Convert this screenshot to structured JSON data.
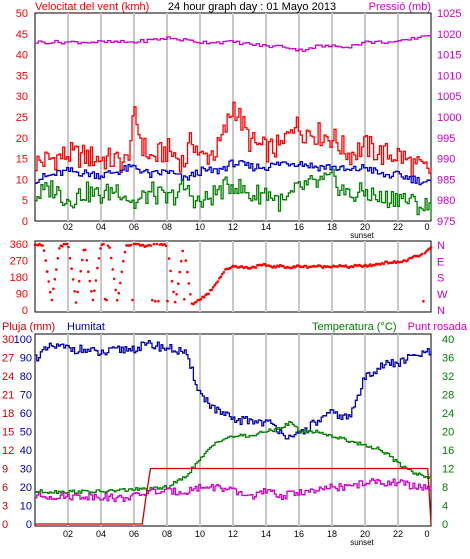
{
  "chart_data": [
    {
      "type": "line",
      "title": "24 hour graph day : 01 Mayo 2013",
      "left_axis_label": "Velocitat del vent (kmh)",
      "right_axis_label": "Pressió (mb)",
      "left_ticks": [
        "0",
        "5",
        "10",
        "15",
        "20",
        "25",
        "30",
        "35",
        "40",
        "45",
        "50"
      ],
      "right_ticks": [
        "975",
        "980",
        "985",
        "990",
        "995",
        "1000",
        "1005",
        "1010",
        "1015",
        "1020",
        "1025"
      ],
      "left_range": [
        0,
        50
      ],
      "right_range": [
        975,
        1025
      ],
      "x_ticks": [
        "02",
        "04",
        "06",
        "08",
        "10",
        "12",
        "14",
        "16",
        "18",
        "20",
        "22",
        "0"
      ],
      "x_marker": "sunset",
      "grid": true,
      "colors": {
        "gust": "#ff0000",
        "average": "#0000cc",
        "minimum": "#008000",
        "pressure": "#cc00cc"
      },
      "series": [
        {
          "key": "gust",
          "hours": [
            0,
            2,
            4,
            5.5,
            6,
            6.5,
            7,
            8,
            9,
            9.5,
            10,
            11,
            11.5,
            12,
            13,
            14,
            15,
            15.5,
            16,
            17,
            18,
            19,
            20,
            21,
            22,
            23,
            24
          ],
          "values": [
            14,
            16,
            15,
            14,
            25,
            18,
            15,
            17,
            14,
            20,
            15,
            17,
            22,
            28,
            19,
            17,
            18,
            24,
            22,
            21,
            20,
            16,
            18,
            16,
            16,
            13,
            12
          ]
        },
        {
          "key": "average",
          "hours": [
            0,
            2,
            4,
            6,
            7,
            8,
            9,
            10,
            11,
            12,
            13,
            14,
            15,
            16,
            17,
            18,
            19,
            20,
            21,
            22,
            23,
            24
          ],
          "values": [
            10,
            12,
            11,
            13,
            11,
            12,
            10,
            12,
            12,
            14,
            13,
            13,
            14,
            14,
            13,
            13,
            12,
            13,
            11,
            11,
            10,
            9
          ]
        },
        {
          "key": "minimum",
          "hours": [
            0,
            1,
            2,
            3,
            4,
            5,
            6,
            7,
            8,
            9,
            10,
            11,
            12,
            13,
            14,
            15,
            16,
            17,
            18,
            19,
            20,
            21,
            22,
            23,
            24
          ],
          "values": [
            6,
            8,
            5,
            7,
            6,
            8,
            4,
            7,
            5,
            8,
            4,
            7,
            9,
            6,
            7,
            4,
            8,
            9,
            10,
            6,
            7,
            5,
            6,
            4,
            3
          ]
        },
        {
          "key": "pressure",
          "hours": [
            0,
            2,
            4,
            6,
            8,
            10,
            12,
            14,
            15,
            16,
            17,
            18,
            19,
            20,
            21,
            22,
            23,
            24
          ],
          "values": [
            1018,
            1018,
            1018,
            1018,
            1019,
            1018,
            1018,
            1017,
            1017,
            1016,
            1017,
            1017,
            1017,
            1018,
            1018,
            1018,
            1019,
            1020
          ]
        }
      ]
    },
    {
      "type": "scatter",
      "title": "",
      "left_ticks": [
        "0",
        "90",
        "180",
        "270",
        "360"
      ],
      "right_ticks": [
        "N",
        "W",
        "S",
        "E",
        "N"
      ],
      "y_range": [
        0,
        360
      ],
      "color": "#ff0000",
      "series": [
        {
          "key": "direction",
          "hours": [
            0,
            0.5,
            1,
            1.5,
            2,
            2.5,
            3,
            3.5,
            4,
            4.5,
            5,
            5.5,
            6,
            6.5,
            7,
            7.5,
            8,
            8.5,
            9,
            9.5,
            10,
            10.5,
            11,
            11.5,
            12,
            12.5,
            13,
            13.5,
            14,
            14.5,
            15,
            15.5,
            16,
            16.5,
            17,
            17.5,
            18,
            18.5,
            19,
            19.5,
            20,
            20.5,
            21,
            21.5,
            22,
            22.5,
            23,
            23.5,
            24
          ],
          "values": [
            360,
            355,
            45,
            350,
            360,
            40,
            355,
            45,
            360,
            350,
            45,
            355,
            360,
            350,
            355,
            360,
            355,
            35,
            355,
            30,
            60,
            90,
            150,
            215,
            240,
            235,
            230,
            240,
            245,
            235,
            240,
            230,
            240,
            235,
            240,
            235,
            240,
            240,
            235,
            240,
            240,
            245,
            255,
            260,
            260,
            270,
            290,
            300,
            340
          ]
        }
      ]
    },
    {
      "type": "line",
      "labels": {
        "rain": "Pluja (mm)",
        "humidity": "Humitat",
        "temperature": "Temperatura (°C)",
        "dewpoint": "Punt rosada"
      },
      "left_ticks": [
        "0",
        "10",
        "20",
        "30",
        "40",
        "50",
        "60",
        "70",
        "80",
        "90",
        "100"
      ],
      "left_ticks_rain": [
        "0",
        "3",
        "6",
        "9",
        "12",
        "15",
        "18",
        "21",
        "24",
        "27",
        "30"
      ],
      "right_ticks": [
        "0",
        "4",
        "8",
        "12",
        "16",
        "20",
        "24",
        "28",
        "32",
        "36",
        "40"
      ],
      "left_range": [
        0,
        100
      ],
      "right_range": [
        0,
        40
      ],
      "x_ticks": [
        "02",
        "04",
        "06",
        "08",
        "10",
        "12",
        "14",
        "16",
        "18",
        "20",
        "22",
        "0"
      ],
      "x_marker": "sunset",
      "colors": {
        "rain": "#cc0000",
        "humidity": "#0000aa",
        "temperature": "#008000",
        "dewpoint": "#cc00cc"
      },
      "series": [
        {
          "key": "humidity",
          "hours": [
            0,
            1,
            2,
            3,
            4,
            5,
            6,
            7,
            8,
            9,
            9.5,
            10,
            11,
            12,
            13,
            14,
            15,
            15.5,
            16,
            17,
            18,
            19,
            19.5,
            20,
            21,
            22,
            23,
            24
          ],
          "values": [
            90,
            96,
            95,
            94,
            92,
            94,
            95,
            97,
            95,
            93,
            82,
            70,
            61,
            56,
            56,
            55,
            50,
            45,
            49,
            55,
            60,
            57,
            68,
            80,
            86,
            87,
            91,
            93
          ]
        },
        {
          "key": "temperature",
          "hours": [
            0,
            2,
            4,
            6,
            7,
            8,
            9,
            10,
            11,
            12,
            13,
            14,
            15,
            15.5,
            16,
            17,
            18,
            19,
            20,
            21,
            22,
            23,
            24
          ],
          "values": [
            7,
            7,
            7,
            7.5,
            7.5,
            8,
            10,
            14,
            18,
            19,
            19,
            20,
            21,
            22,
            20,
            20,
            19,
            18,
            17,
            16,
            13,
            11,
            10
          ]
        },
        {
          "key": "dewpoint",
          "hours": [
            0,
            2,
            4,
            5,
            6,
            7,
            8,
            9,
            10,
            11,
            12,
            13,
            14,
            15,
            16,
            17,
            18,
            19,
            20,
            21,
            22,
            23,
            24
          ],
          "values": [
            6,
            6,
            6,
            5.5,
            6,
            7,
            7,
            7,
            8,
            8,
            7,
            6,
            7,
            6,
            7,
            7,
            8,
            8,
            9,
            9,
            9,
            8,
            8
          ]
        },
        {
          "key": "rain",
          "hours": [
            0,
            6.5,
            6.7,
            7,
            8,
            10,
            12,
            14,
            16,
            18,
            20,
            22,
            23.8,
            24
          ],
          "values": [
            0,
            0,
            4,
            9,
            9,
            9,
            9,
            9,
            9,
            9,
            9,
            9,
            9,
            0
          ]
        }
      ]
    }
  ]
}
